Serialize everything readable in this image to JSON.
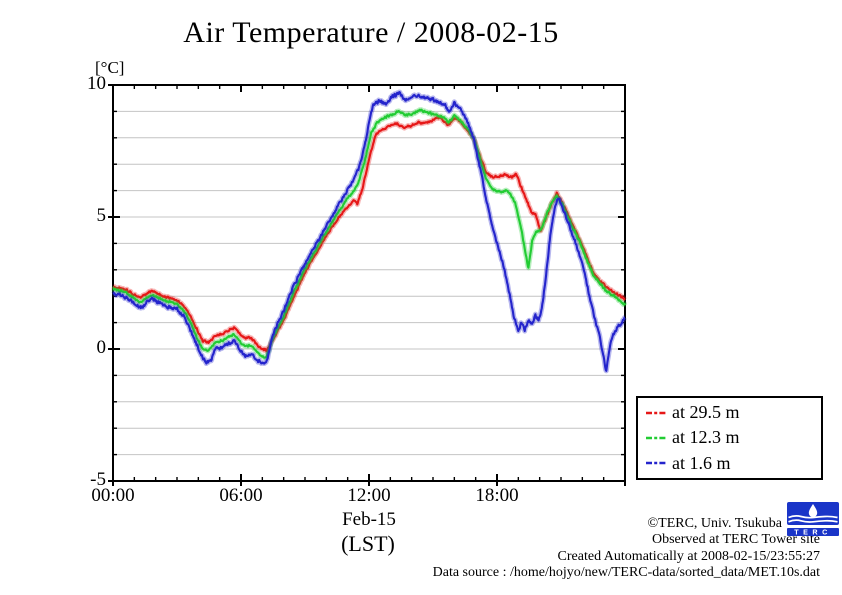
{
  "title": "Air Temperature / 2008-02-15",
  "unit_label": "[°C]",
  "x_axis": {
    "date_label": "Feb-15",
    "timezone_label": "(LST)"
  },
  "legend": {
    "items": [
      {
        "label": "at 29.5 m",
        "color": "#e61717"
      },
      {
        "label": "at 12.3 m",
        "color": "#22cc33"
      },
      {
        "label": "at 1.6 m",
        "color": "#2424cc"
      }
    ]
  },
  "annotations": {
    "copyright": "©TERC, Univ. Tsukuba",
    "observed": "Observed at TERC Tower site",
    "created": "Created Automatically at 2008-02-15/23:55:27",
    "source": "Data source : /home/hojyo/new/TERC-data/sorted_data/MET.10s.dat"
  },
  "logo": {
    "text": "TERC",
    "color": "#1a35c8"
  },
  "chart_data": {
    "type": "line",
    "title": "Air Temperature / 2008-02-15",
    "xlabel": "Feb-15 (LST)",
    "ylabel": "[°C]",
    "xlim": [
      0,
      24
    ],
    "ylim": [
      -5,
      10
    ],
    "grid": "horizontal gridlines every 1 degree C",
    "legend_position": "outside lower right",
    "x_ticks": [
      {
        "h": 0,
        "label": "00:00"
      },
      {
        "h": 6,
        "label": "06:00"
      },
      {
        "h": 12,
        "label": "12:00"
      },
      {
        "h": 18,
        "label": "18:00"
      }
    ],
    "x_minor_tick_every_h": 1,
    "y_ticks": [
      {
        "v": 10,
        "label": "10"
      },
      {
        "v": 5,
        "label": "5"
      },
      {
        "v": 0,
        "label": "0"
      },
      {
        "v": -5,
        "label": "-5"
      }
    ],
    "y_minor_tick_every": 1,
    "series": [
      {
        "name": "at 29.5 m",
        "color": "#e61717",
        "noise": 0.05,
        "points": [
          [
            0,
            2.35
          ],
          [
            0.3,
            2.3
          ],
          [
            0.6,
            2.25
          ],
          [
            1.0,
            2.05
          ],
          [
            1.3,
            1.95
          ],
          [
            1.6,
            2.1
          ],
          [
            1.8,
            2.2
          ],
          [
            2.1,
            2.1
          ],
          [
            2.5,
            1.95
          ],
          [
            2.8,
            1.9
          ],
          [
            3.0,
            1.85
          ],
          [
            3.3,
            1.65
          ],
          [
            3.6,
            1.3
          ],
          [
            3.9,
            0.8
          ],
          [
            4.2,
            0.3
          ],
          [
            4.5,
            0.25
          ],
          [
            4.8,
            0.5
          ],
          [
            5.1,
            0.55
          ],
          [
            5.4,
            0.7
          ],
          [
            5.7,
            0.8
          ],
          [
            6.0,
            0.55
          ],
          [
            6.2,
            0.4
          ],
          [
            6.4,
            0.45
          ],
          [
            6.6,
            0.3
          ],
          [
            6.8,
            0.1
          ],
          [
            7.0,
            0.0
          ],
          [
            7.2,
            -0.05
          ],
          [
            7.5,
            0.35
          ],
          [
            8.0,
            1.1
          ],
          [
            8.5,
            2.0
          ],
          [
            9.0,
            2.9
          ],
          [
            9.5,
            3.6
          ],
          [
            10.0,
            4.3
          ],
          [
            10.5,
            4.9
          ],
          [
            11.0,
            5.4
          ],
          [
            11.3,
            5.65
          ],
          [
            11.45,
            5.5
          ],
          [
            11.7,
            6.1
          ],
          [
            12.0,
            7.2
          ],
          [
            12.3,
            8.1
          ],
          [
            12.6,
            8.3
          ],
          [
            13.0,
            8.45
          ],
          [
            13.3,
            8.55
          ],
          [
            13.6,
            8.4
          ],
          [
            14.0,
            8.45
          ],
          [
            14.3,
            8.6
          ],
          [
            14.6,
            8.55
          ],
          [
            15.0,
            8.65
          ],
          [
            15.3,
            8.8
          ],
          [
            15.6,
            8.55
          ],
          [
            15.75,
            8.5
          ],
          [
            16.0,
            8.75
          ],
          [
            16.3,
            8.6
          ],
          [
            16.6,
            8.3
          ],
          [
            16.9,
            8.0
          ],
          [
            17.2,
            7.3
          ],
          [
            17.5,
            6.7
          ],
          [
            17.8,
            6.5
          ],
          [
            18.1,
            6.55
          ],
          [
            18.4,
            6.6
          ],
          [
            18.7,
            6.5
          ],
          [
            18.9,
            6.65
          ],
          [
            19.1,
            6.2
          ],
          [
            19.4,
            5.6
          ],
          [
            19.6,
            5.2
          ],
          [
            19.8,
            5.1
          ],
          [
            20.05,
            4.45
          ],
          [
            20.3,
            5.0
          ],
          [
            20.55,
            5.5
          ],
          [
            20.8,
            5.9
          ],
          [
            21.05,
            5.55
          ],
          [
            21.3,
            5.15
          ],
          [
            21.6,
            4.6
          ],
          [
            21.9,
            4.1
          ],
          [
            22.1,
            3.7
          ],
          [
            22.3,
            3.3
          ],
          [
            22.5,
            2.9
          ],
          [
            22.8,
            2.6
          ],
          [
            23.0,
            2.45
          ],
          [
            23.2,
            2.3
          ],
          [
            23.5,
            2.15
          ],
          [
            23.8,
            2.0
          ],
          [
            24,
            1.85
          ]
        ]
      },
      {
        "name": "at 12.3 m",
        "color": "#22cc33",
        "noise": 0.05,
        "points": [
          [
            0,
            2.25
          ],
          [
            0.3,
            2.2
          ],
          [
            0.6,
            2.15
          ],
          [
            1.0,
            1.9
          ],
          [
            1.3,
            1.75
          ],
          [
            1.6,
            1.95
          ],
          [
            1.8,
            2.05
          ],
          [
            2.1,
            1.95
          ],
          [
            2.5,
            1.8
          ],
          [
            2.8,
            1.75
          ],
          [
            3.0,
            1.7
          ],
          [
            3.3,
            1.45
          ],
          [
            3.6,
            1.05
          ],
          [
            3.9,
            0.5
          ],
          [
            4.2,
            0.0
          ],
          [
            4.5,
            -0.05
          ],
          [
            4.8,
            0.25
          ],
          [
            5.1,
            0.3
          ],
          [
            5.4,
            0.45
          ],
          [
            5.7,
            0.55
          ],
          [
            6.0,
            0.25
          ],
          [
            6.2,
            0.1
          ],
          [
            6.4,
            0.15
          ],
          [
            6.6,
            0.05
          ],
          [
            6.8,
            -0.15
          ],
          [
            7.0,
            -0.3
          ],
          [
            7.2,
            -0.3
          ],
          [
            7.5,
            0.45
          ],
          [
            8.0,
            1.25
          ],
          [
            8.5,
            2.2
          ],
          [
            9.0,
            3.05
          ],
          [
            9.5,
            3.75
          ],
          [
            10.0,
            4.45
          ],
          [
            10.5,
            5.1
          ],
          [
            11.0,
            5.7
          ],
          [
            11.3,
            6.0
          ],
          [
            11.5,
            6.3
          ],
          [
            11.8,
            7.1
          ],
          [
            12.1,
            8.2
          ],
          [
            12.4,
            8.6
          ],
          [
            12.7,
            8.75
          ],
          [
            13.0,
            8.85
          ],
          [
            13.4,
            9.0
          ],
          [
            13.7,
            8.85
          ],
          [
            14.0,
            8.9
          ],
          [
            14.4,
            9.05
          ],
          [
            14.8,
            8.95
          ],
          [
            15.2,
            8.85
          ],
          [
            15.5,
            8.75
          ],
          [
            15.75,
            8.6
          ],
          [
            16.0,
            8.85
          ],
          [
            16.3,
            8.65
          ],
          [
            16.6,
            8.35
          ],
          [
            16.9,
            8.0
          ],
          [
            17.2,
            7.2
          ],
          [
            17.5,
            6.4
          ],
          [
            17.8,
            6.05
          ],
          [
            18.1,
            5.95
          ],
          [
            18.4,
            6.0
          ],
          [
            18.6,
            5.9
          ],
          [
            18.85,
            5.55
          ],
          [
            19.1,
            4.7
          ],
          [
            19.3,
            3.8
          ],
          [
            19.47,
            3.05
          ],
          [
            19.65,
            4.1
          ],
          [
            19.85,
            4.45
          ],
          [
            20.05,
            4.5
          ],
          [
            20.3,
            5.05
          ],
          [
            20.55,
            5.5
          ],
          [
            20.8,
            5.82
          ],
          [
            21.05,
            5.5
          ],
          [
            21.3,
            5.05
          ],
          [
            21.6,
            4.5
          ],
          [
            21.9,
            4.0
          ],
          [
            22.1,
            3.6
          ],
          [
            22.3,
            3.2
          ],
          [
            22.5,
            2.8
          ],
          [
            22.8,
            2.5
          ],
          [
            23.0,
            2.3
          ],
          [
            23.2,
            2.15
          ],
          [
            23.5,
            2.0
          ],
          [
            23.8,
            1.8
          ],
          [
            24,
            1.65
          ]
        ]
      },
      {
        "name": "at 1.6 m",
        "color": "#2424cc",
        "noise": 0.08,
        "points": [
          [
            0,
            2.1
          ],
          [
            0.3,
            2.05
          ],
          [
            0.6,
            1.95
          ],
          [
            1.0,
            1.7
          ],
          [
            1.3,
            1.55
          ],
          [
            1.6,
            1.8
          ],
          [
            1.8,
            1.9
          ],
          [
            2.1,
            1.8
          ],
          [
            2.5,
            1.6
          ],
          [
            2.8,
            1.55
          ],
          [
            3.0,
            1.5
          ],
          [
            3.3,
            1.25
          ],
          [
            3.6,
            0.8
          ],
          [
            3.9,
            0.2
          ],
          [
            4.2,
            -0.35
          ],
          [
            4.4,
            -0.5
          ],
          [
            4.6,
            -0.45
          ],
          [
            4.8,
            0.0
          ],
          [
            5.1,
            0.05
          ],
          [
            5.4,
            0.2
          ],
          [
            5.7,
            0.3
          ],
          [
            6.0,
            -0.1
          ],
          [
            6.2,
            -0.3
          ],
          [
            6.4,
            -0.2
          ],
          [
            6.6,
            -0.25
          ],
          [
            6.8,
            -0.45
          ],
          [
            7.0,
            -0.55
          ],
          [
            7.2,
            -0.5
          ],
          [
            7.5,
            0.55
          ],
          [
            8.0,
            1.45
          ],
          [
            8.5,
            2.45
          ],
          [
            9.0,
            3.25
          ],
          [
            9.5,
            3.95
          ],
          [
            10.0,
            4.65
          ],
          [
            10.5,
            5.35
          ],
          [
            11.0,
            6.05
          ],
          [
            11.3,
            6.45
          ],
          [
            11.5,
            6.8
          ],
          [
            11.8,
            7.7
          ],
          [
            12.0,
            8.6
          ],
          [
            12.2,
            9.25
          ],
          [
            12.5,
            9.4
          ],
          [
            12.8,
            9.3
          ],
          [
            13.1,
            9.55
          ],
          [
            13.4,
            9.7
          ],
          [
            13.7,
            9.45
          ],
          [
            14.0,
            9.5
          ],
          [
            14.3,
            9.65
          ],
          [
            14.6,
            9.5
          ],
          [
            15.0,
            9.45
          ],
          [
            15.3,
            9.35
          ],
          [
            15.6,
            9.2
          ],
          [
            15.75,
            8.95
          ],
          [
            16.0,
            9.3
          ],
          [
            16.3,
            9.1
          ],
          [
            16.6,
            8.6
          ],
          [
            16.9,
            8.0
          ],
          [
            17.2,
            6.9
          ],
          [
            17.5,
            5.6
          ],
          [
            17.8,
            4.6
          ],
          [
            18.1,
            3.7
          ],
          [
            18.35,
            3.0
          ],
          [
            18.6,
            2.0
          ],
          [
            18.8,
            1.2
          ],
          [
            19.0,
            0.7
          ],
          [
            19.15,
            1.05
          ],
          [
            19.3,
            0.75
          ],
          [
            19.5,
            1.1
          ],
          [
            19.65,
            0.9
          ],
          [
            19.8,
            1.25
          ],
          [
            19.95,
            1.1
          ],
          [
            20.1,
            1.5
          ],
          [
            20.3,
            2.8
          ],
          [
            20.5,
            4.3
          ],
          [
            20.7,
            5.3
          ],
          [
            20.88,
            5.75
          ],
          [
            21.05,
            5.4
          ],
          [
            21.3,
            4.85
          ],
          [
            21.6,
            4.2
          ],
          [
            21.9,
            3.5
          ],
          [
            22.1,
            2.9
          ],
          [
            22.35,
            1.9
          ],
          [
            22.6,
            1.1
          ],
          [
            22.8,
            0.5
          ],
          [
            23.0,
            -0.3
          ],
          [
            23.12,
            -0.9
          ],
          [
            23.25,
            -0.1
          ],
          [
            23.4,
            0.45
          ],
          [
            23.6,
            0.75
          ],
          [
            23.85,
            1.0
          ],
          [
            24,
            1.15
          ]
        ]
      }
    ]
  }
}
